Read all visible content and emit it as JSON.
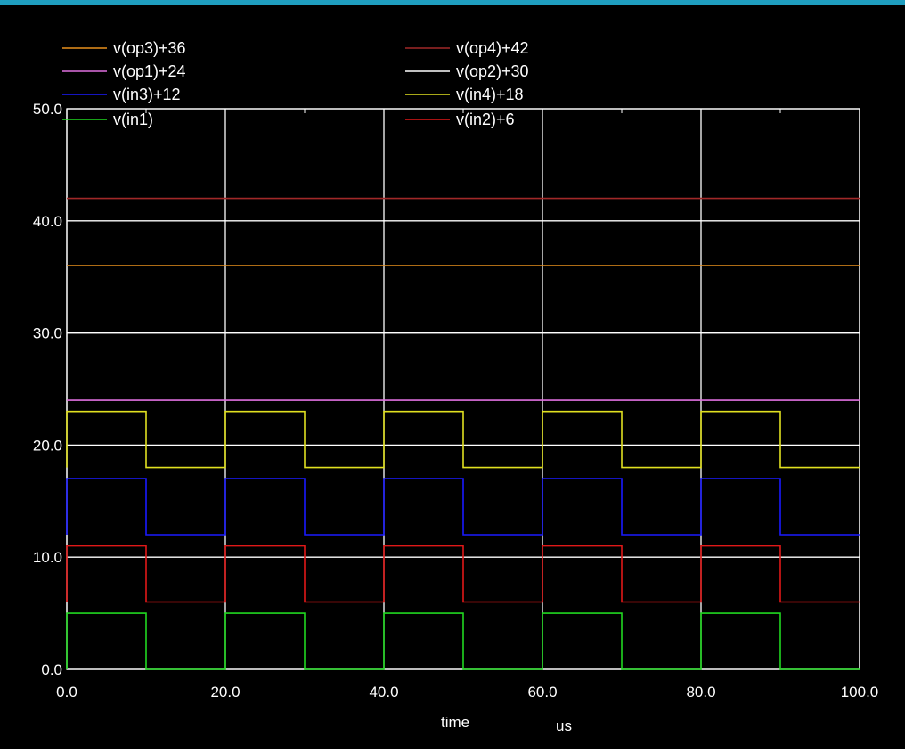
{
  "chart_data": {
    "type": "line",
    "title": "",
    "xlabel": "time",
    "x_unit": "us",
    "ylabel": "",
    "xlim": [
      0,
      100
    ],
    "ylim": [
      0,
      50
    ],
    "x_ticks": [
      "0.0",
      "20.0",
      "40.0",
      "60.0",
      "80.0",
      "100.0"
    ],
    "y_ticks": [
      "0.0",
      "10.0",
      "20.0",
      "30.0",
      "40.0",
      "50.0"
    ],
    "x_tick_values": [
      0,
      20,
      40,
      60,
      80,
      100
    ],
    "y_tick_values": [
      0,
      10,
      20,
      30,
      40,
      50
    ],
    "grid": true,
    "background": "#000000",
    "grid_color": "#ffffff",
    "legend_position": "top",
    "series": [
      {
        "name": "v(op3)+36",
        "color": "#e8901c",
        "x": [
          0,
          100
        ],
        "y": [
          36,
          36
        ]
      },
      {
        "name": "v(op4)+42",
        "color": "#a02828",
        "x": [
          0,
          100
        ],
        "y": [
          42,
          42
        ]
      },
      {
        "name": "v(op1)+24",
        "color": "#e070e0",
        "x": [
          0,
          100
        ],
        "y": [
          24,
          24
        ]
      },
      {
        "name": "v(op2)+30",
        "color": "#ffffff",
        "x": [
          0,
          100
        ],
        "y": [
          30,
          30
        ]
      },
      {
        "name": "v(in3)+12",
        "color": "#1a1aff",
        "x": [
          0,
          0,
          10,
          10,
          20,
          20,
          30,
          30,
          40,
          40,
          50,
          50,
          60,
          60,
          70,
          70,
          80,
          80,
          90,
          90,
          100
        ],
        "y": [
          12,
          17,
          17,
          12,
          12,
          17,
          17,
          12,
          12,
          17,
          17,
          12,
          12,
          17,
          17,
          12,
          12,
          17,
          17,
          12,
          12
        ]
      },
      {
        "name": "v(in4)+18",
        "color": "#e0e020",
        "x": [
          0,
          0,
          10,
          10,
          20,
          20,
          30,
          30,
          40,
          40,
          50,
          50,
          60,
          60,
          70,
          70,
          80,
          80,
          90,
          90,
          100
        ],
        "y": [
          18,
          23,
          23,
          18,
          18,
          23,
          23,
          18,
          18,
          23,
          23,
          18,
          18,
          23,
          23,
          18,
          18,
          23,
          23,
          18,
          18
        ]
      },
      {
        "name": "v(in1)",
        "color": "#20d820",
        "x": [
          0,
          0,
          10,
          10,
          20,
          20,
          30,
          30,
          40,
          40,
          50,
          50,
          60,
          60,
          70,
          70,
          80,
          80,
          90,
          90,
          100
        ],
        "y": [
          0,
          5,
          5,
          0,
          0,
          5,
          5,
          0,
          0,
          5,
          5,
          0,
          0,
          5,
          5,
          0,
          0,
          5,
          5,
          0,
          0
        ]
      },
      {
        "name": "v(in2)+6",
        "color": "#e01818",
        "x": [
          0,
          0,
          10,
          10,
          20,
          20,
          30,
          30,
          40,
          40,
          50,
          50,
          60,
          60,
          70,
          70,
          80,
          80,
          90,
          90,
          100
        ],
        "y": [
          6,
          11,
          11,
          6,
          6,
          11,
          11,
          6,
          6,
          11,
          11,
          6,
          6,
          11,
          11,
          6,
          6,
          11,
          11,
          6,
          6
        ]
      }
    ]
  }
}
